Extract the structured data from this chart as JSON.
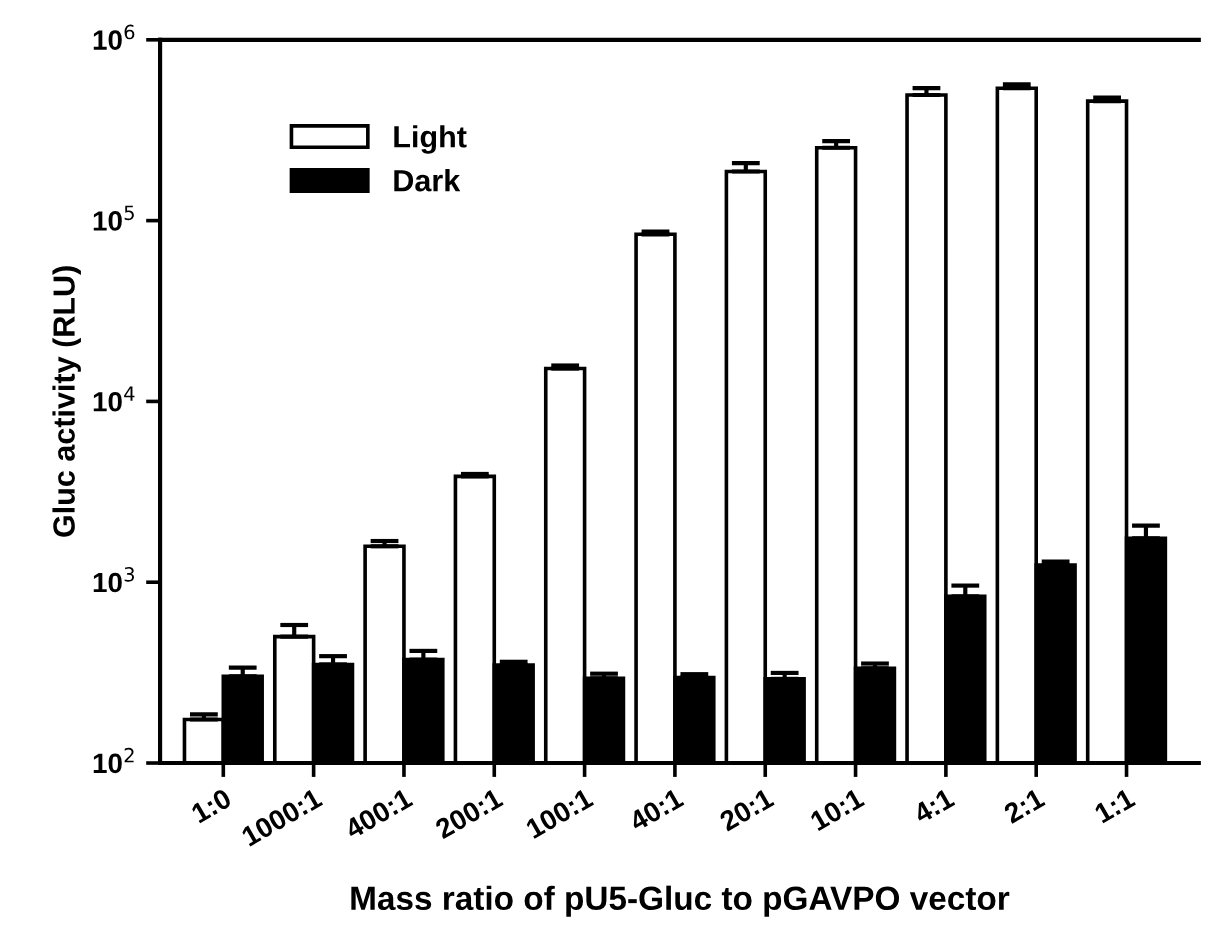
{
  "chart_data": {
    "type": "bar",
    "xlabel": "Mass ratio of pU5-Gluc to pGAVPO vector",
    "ylabel": "Gluc activity (RLU)",
    "categories": [
      "1:0",
      "1000:1",
      "400:1",
      "200:1",
      "100:1",
      "40:1",
      "20:1",
      "10:1",
      "4:1",
      "2:1",
      "1:1"
    ],
    "series": [
      {
        "name": "Light",
        "color": "#ffffff",
        "values": [
          174,
          500,
          1580,
          3850,
          15200,
          84000,
          187000,
          253000,
          495000,
          540000,
          458000
        ],
        "errors": [
          [
            174,
            186
          ],
          [
            500,
            580
          ],
          [
            1580,
            1690
          ],
          [
            3850,
            3970
          ],
          [
            15200,
            15800
          ],
          [
            84000,
            87000
          ],
          [
            187000,
            208000
          ],
          [
            253000,
            275000
          ],
          [
            495000,
            540000
          ],
          [
            540000,
            567000
          ],
          [
            458000,
            479000
          ]
        ]
      },
      {
        "name": "Dark",
        "color": "#000000",
        "values": [
          302,
          351,
          373,
          348,
          294,
          297,
          292,
          334,
          835,
          1245,
          1750
        ],
        "errors": [
          [
            302,
            337
          ],
          [
            351,
            390
          ],
          [
            373,
            417
          ],
          [
            348,
            363
          ],
          [
            294,
            312
          ],
          [
            297,
            310
          ],
          [
            292,
            315
          ],
          [
            334,
            355
          ],
          [
            835,
            958
          ],
          [
            1245,
            1300
          ],
          [
            1750,
            2055
          ]
        ]
      }
    ],
    "log": "y",
    "ylim": [
      100,
      1000000
    ],
    "yticks": [
      {
        "value": 100,
        "label": "10$^{2}$"
      },
      {
        "value": 1000,
        "label": "10$^{3}$"
      },
      {
        "value": 10000,
        "label": "10$^{4}$"
      },
      {
        "value": 100000,
        "label": "10$^{5}$"
      },
      {
        "value": 1000000,
        "label": "10$^{6}$"
      }
    ],
    "legend": "top left",
    "grid": false
  }
}
